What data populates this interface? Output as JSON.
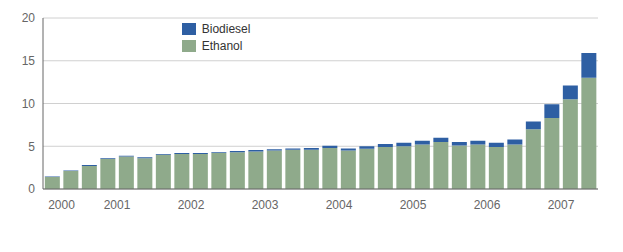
{
  "chart_data": {
    "type": "bar",
    "stacked": true,
    "grid": true,
    "legend": "upper left",
    "categories": [
      "2000",
      null,
      null,
      "2001",
      null,
      null,
      null,
      "2002",
      null,
      null,
      null,
      "2003",
      null,
      null,
      null,
      "2004",
      null,
      null,
      null,
      "2005",
      null,
      null,
      null,
      "2006",
      null,
      null,
      null,
      "2007",
      null,
      null
    ],
    "series": [
      {
        "name": "Ethanol",
        "color": "#8faa8b",
        "values": [
          1.4,
          2.1,
          2.7,
          3.5,
          3.8,
          3.6,
          4.0,
          4.1,
          4.1,
          4.2,
          4.3,
          4.4,
          4.5,
          4.6,
          4.6,
          4.8,
          4.5,
          4.7,
          4.9,
          5.0,
          5.2,
          5.5,
          5.1,
          5.2,
          4.9,
          5.2,
          7.0,
          8.3,
          10.5,
          13.0
        ]
      },
      {
        "name": "Biodiesel",
        "color": "#2e5fa3",
        "values": [
          0.05,
          0.05,
          0.1,
          0.1,
          0.1,
          0.1,
          0.1,
          0.1,
          0.1,
          0.1,
          0.15,
          0.15,
          0.15,
          0.15,
          0.2,
          0.25,
          0.25,
          0.3,
          0.35,
          0.4,
          0.45,
          0.5,
          0.4,
          0.45,
          0.5,
          0.6,
          0.9,
          1.6,
          1.6,
          2.9
        ]
      }
    ],
    "ylim": [
      0,
      20
    ],
    "yticks": [
      0,
      5,
      10,
      15,
      20
    ]
  }
}
